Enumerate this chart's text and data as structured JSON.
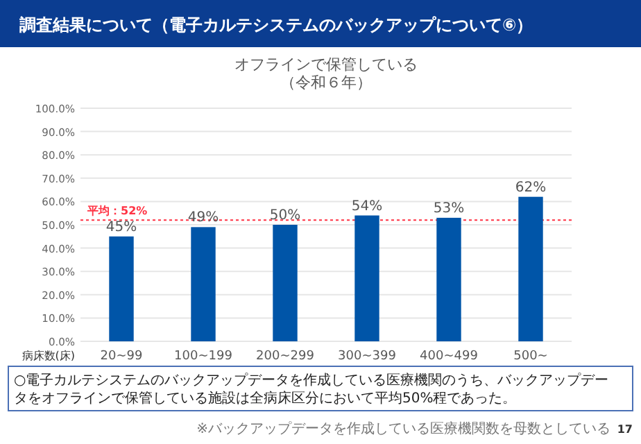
{
  "chart_data": {
    "type": "bar",
    "title": "オフラインで保管している",
    "subtitle": "（令和６年）",
    "xlabel": "病床数(床)",
    "categories": [
      "20~99",
      "100~199",
      "200~299",
      "300~399",
      "400~499",
      "500~"
    ],
    "values": [
      45,
      49,
      50,
      54,
      53,
      62
    ],
    "color": "#0055a8",
    "value_labels": [
      "45%",
      "49%",
      "50%",
      "54%",
      "53%",
      "62%"
    ],
    "ylim": [
      0,
      100
    ],
    "yticks": [
      {
        "value": 0,
        "label": "0.0%"
      },
      {
        "value": 10,
        "label": "10.0%"
      },
      {
        "value": 20,
        "label": "20.0%"
      },
      {
        "value": 30,
        "label": "30.0%"
      },
      {
        "value": 40,
        "label": "40.0%"
      },
      {
        "value": 50,
        "label": "50.0%"
      },
      {
        "value": 60,
        "label": "60.0%"
      },
      {
        "value": 70,
        "label": "70.0%"
      },
      {
        "value": 80,
        "label": "80.0%"
      },
      {
        "value": 90,
        "label": "90.0%"
      },
      {
        "value": 100,
        "label": "100.0%"
      }
    ],
    "grid": "y",
    "ref_lines": [
      {
        "axis": "y",
        "value": 52,
        "label": "平均：52%",
        "color": "#ff3344",
        "line_style": "dotted"
      }
    ],
    "annotations": [
      "調査結果について（電子カルテシステムのバックアップについて⑥）",
      "○電子カルテシステムのバックアップデータを作成している医療機関のうち、バックアップデータをオフラインで保管している施設は全病床区分において平均50%程であった。",
      "※バックアップデータを作成している医療機関数を母数としている",
      "17"
    ]
  }
}
